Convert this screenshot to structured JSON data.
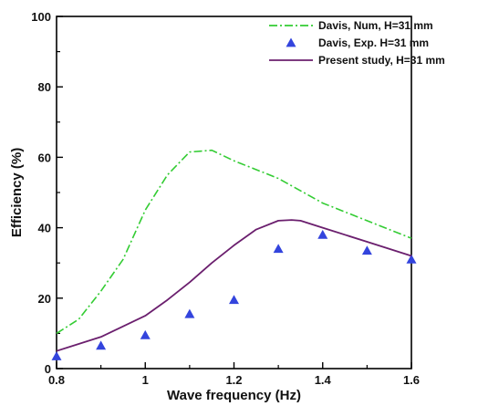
{
  "chart_data": {
    "type": "line",
    "title": "",
    "xlabel": "Wave frequency (Hz)",
    "ylabel": "Efficiency (%)",
    "xlim": [
      0.8,
      1.6
    ],
    "ylim": [
      0,
      100
    ],
    "x_ticks": [
      "0.8",
      "1",
      "1.2",
      "1.4",
      "1.6"
    ],
    "y_ticks": [
      "0",
      "20",
      "40",
      "60",
      "80",
      "100"
    ],
    "grid": false,
    "legend_position": "top-right",
    "series": [
      {
        "name": "Davis, Num, H=31 mm",
        "style": "dash-dot line",
        "color": "#33cc33",
        "x": [
          0.8,
          0.85,
          0.9,
          0.95,
          1.0,
          1.05,
          1.1,
          1.15,
          1.2,
          1.3,
          1.4,
          1.5,
          1.6
        ],
        "y": [
          10,
          14,
          22,
          31,
          45,
          55,
          61.5,
          62,
          59,
          54,
          47,
          42,
          37
        ]
      },
      {
        "name": "Davis, Exp. H=31 mm",
        "style": "triangle markers",
        "color": "#3344dd",
        "x": [
          0.8,
          0.9,
          1.0,
          1.1,
          1.2,
          1.3,
          1.4,
          1.5,
          1.6
        ],
        "y": [
          3.5,
          6.5,
          9.5,
          15.5,
          19.5,
          34,
          38,
          33.5,
          31
        ]
      },
      {
        "name": "Present study, H=31 mm",
        "style": "solid line",
        "color": "#6b1f6e",
        "x": [
          0.8,
          0.9,
          1.0,
          1.05,
          1.1,
          1.15,
          1.2,
          1.25,
          1.3,
          1.33,
          1.35,
          1.4,
          1.45,
          1.5,
          1.55,
          1.6
        ],
        "y": [
          5,
          9,
          15,
          19.5,
          24.5,
          30,
          35,
          39.5,
          42,
          42.2,
          42,
          40,
          38,
          36,
          34,
          32
        ]
      }
    ]
  }
}
